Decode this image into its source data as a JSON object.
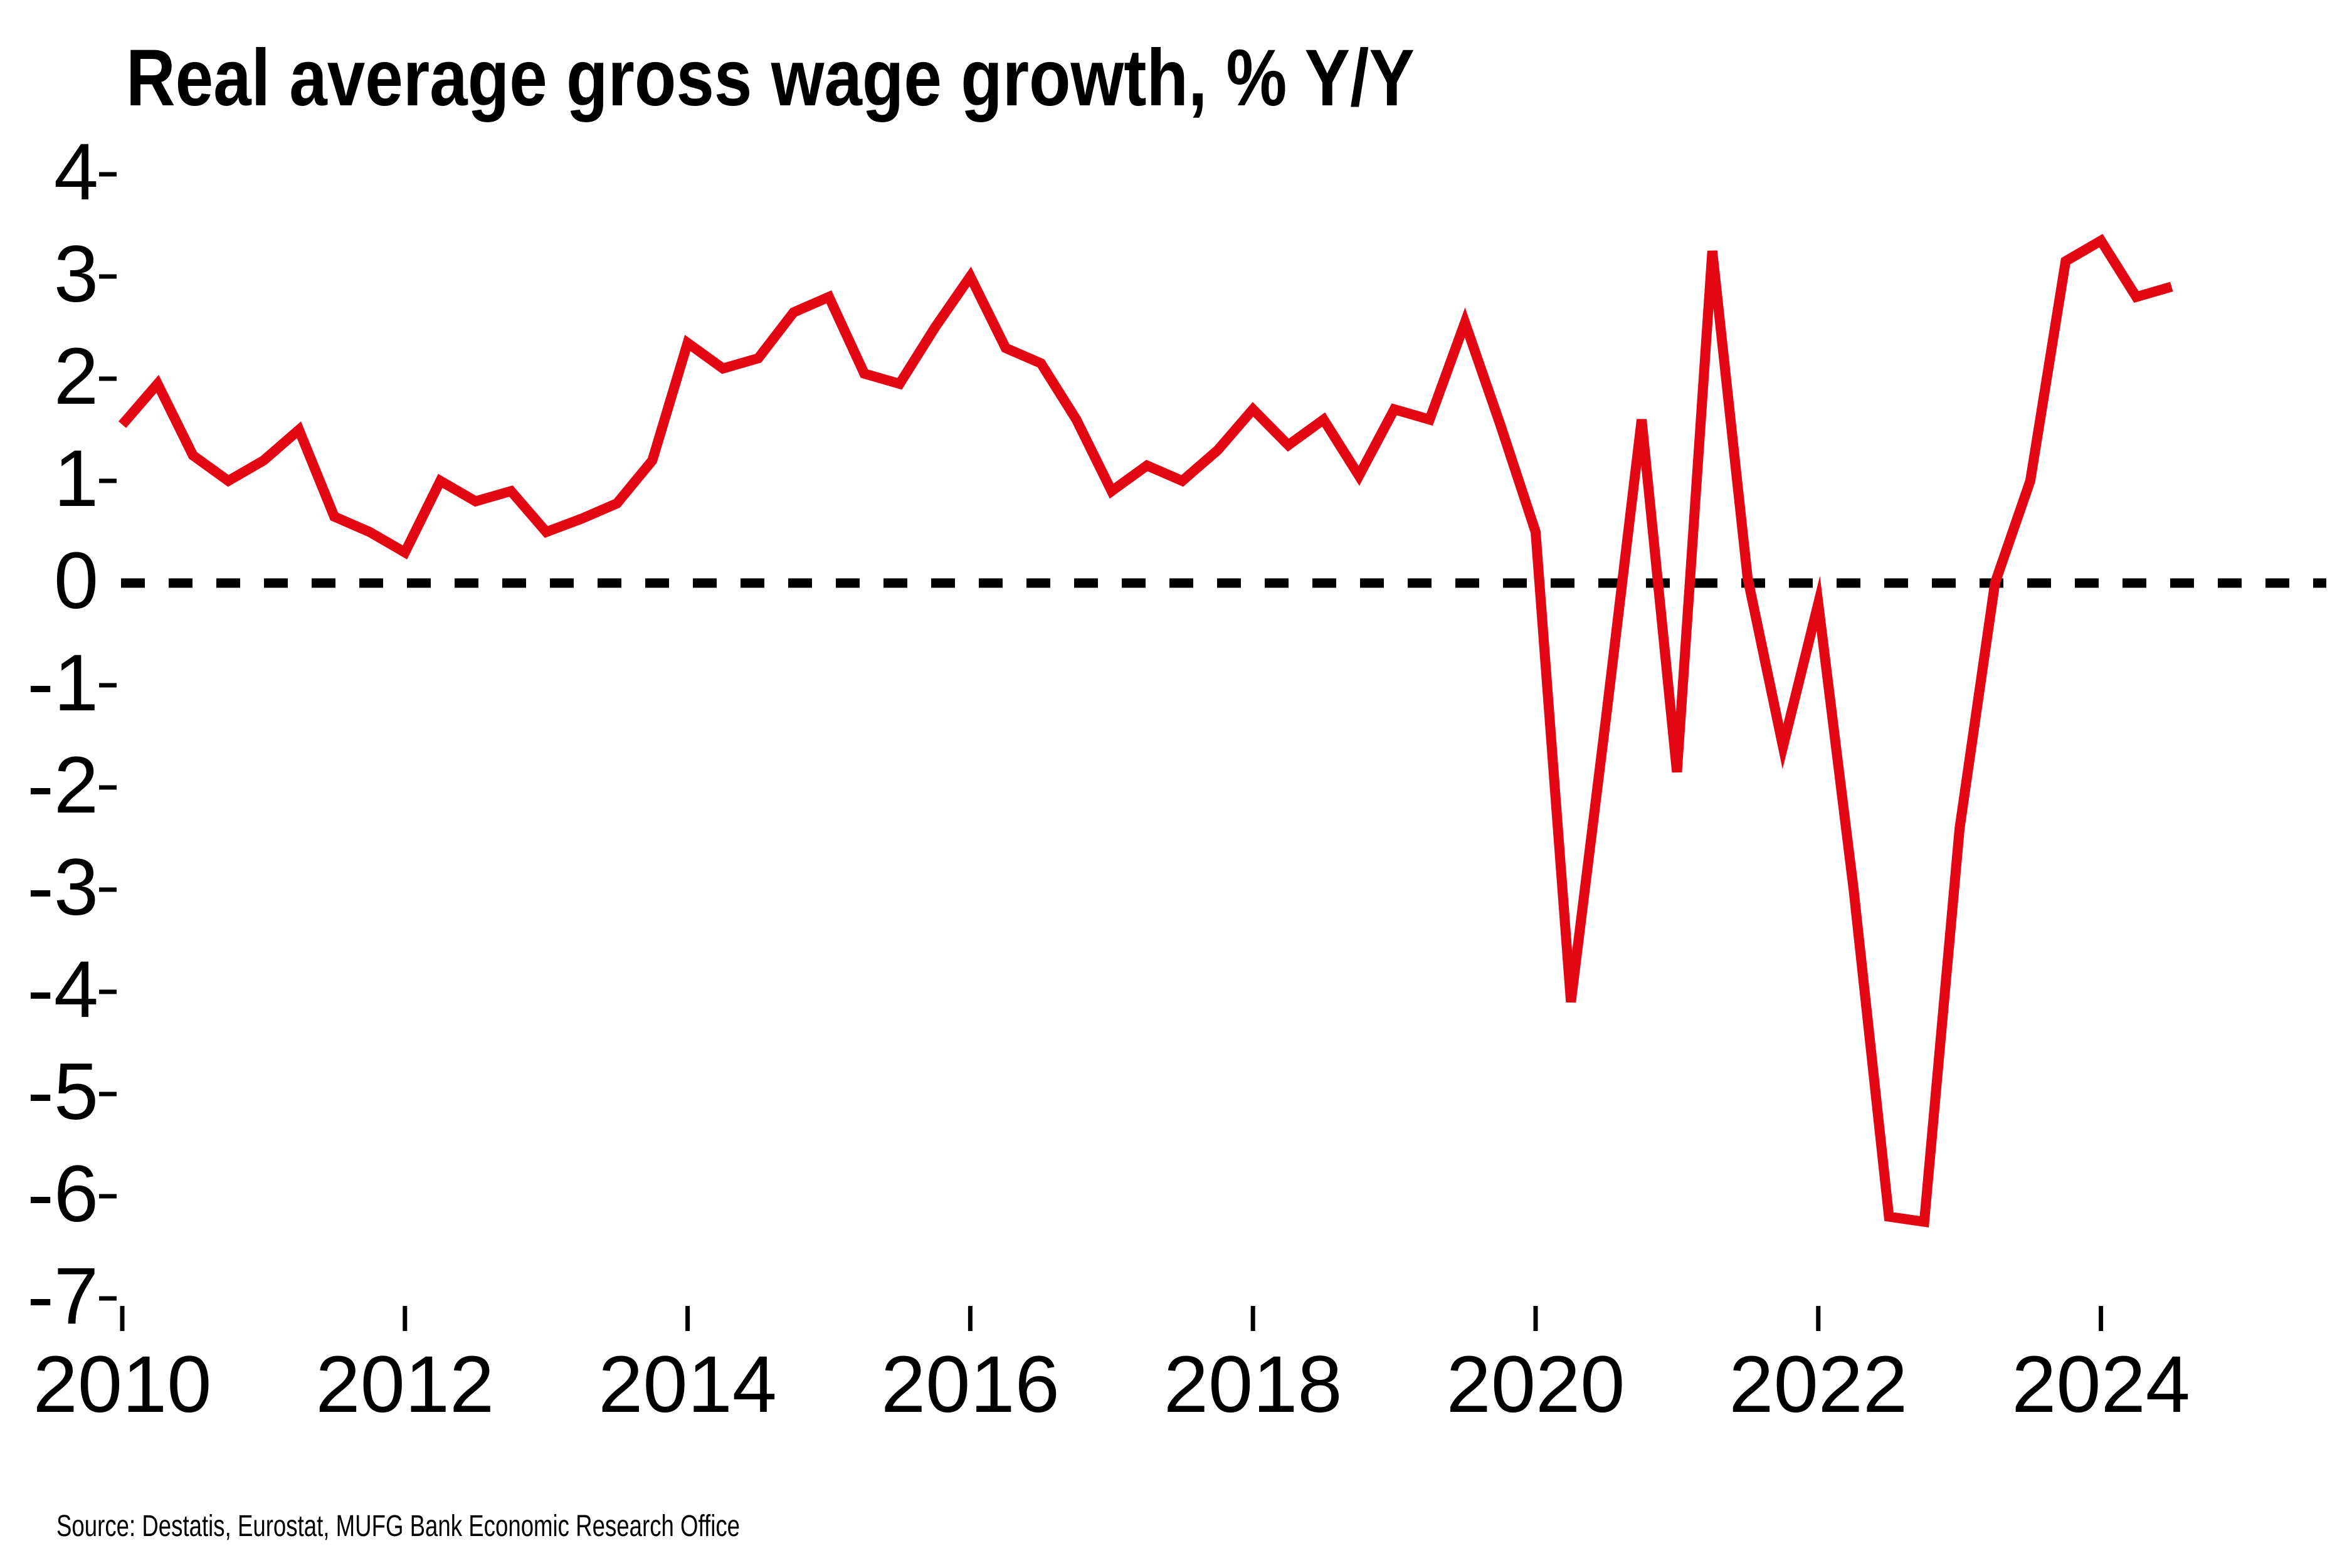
{
  "title": "Real average gross wage growth, % Y/Y",
  "source": "Source: Destatis, Eurostat, MUFG Bank Economic Research Office",
  "chart_data": {
    "type": "line",
    "title": "Real average gross wage growth, % Y/Y",
    "xlabel": "",
    "ylabel": "",
    "ylim": [
      -7,
      4
    ],
    "yticks": [
      4,
      3,
      2,
      1,
      0,
      -1,
      -2,
      -3,
      -4,
      -5,
      -6,
      -7
    ],
    "xtick_years": [
      2010,
      2012,
      2014,
      2016,
      2018,
      2020,
      2022,
      2024
    ],
    "grid": "off",
    "legend": "none",
    "zero_line": "dashed-black",
    "line_color": "#e30613",
    "series": [
      {
        "name": "Real average gross wage growth, % Y/Y",
        "x": [
          "2010Q1",
          "2010Q2",
          "2010Q3",
          "2010Q4",
          "2011Q1",
          "2011Q2",
          "2011Q3",
          "2011Q4",
          "2012Q1",
          "2012Q2",
          "2012Q3",
          "2012Q4",
          "2013Q1",
          "2013Q2",
          "2013Q3",
          "2013Q4",
          "2014Q1",
          "2014Q2",
          "2014Q3",
          "2014Q4",
          "2015Q1",
          "2015Q2",
          "2015Q3",
          "2015Q4",
          "2016Q1",
          "2016Q2",
          "2016Q3",
          "2016Q4",
          "2017Q1",
          "2017Q2",
          "2017Q3",
          "2017Q4",
          "2018Q1",
          "2018Q2",
          "2018Q3",
          "2018Q4",
          "2019Q1",
          "2019Q2",
          "2019Q3",
          "2019Q4",
          "2020Q1",
          "2020Q2",
          "2020Q3",
          "2020Q4",
          "2021Q1",
          "2021Q2",
          "2021Q3",
          "2021Q4",
          "2022Q1",
          "2022Q2",
          "2022Q3",
          "2022Q4",
          "2023Q1",
          "2023Q2",
          "2023Q3",
          "2023Q4",
          "2024Q1",
          "2024Q2",
          "2024Q3"
        ],
        "values": [
          1.55,
          1.95,
          1.25,
          1.0,
          1.2,
          1.5,
          0.65,
          0.5,
          0.3,
          1.0,
          0.8,
          0.9,
          0.5,
          0.63,
          0.78,
          1.2,
          2.35,
          2.1,
          2.2,
          2.65,
          2.8,
          2.05,
          1.95,
          2.5,
          3.0,
          2.3,
          2.15,
          1.6,
          0.9,
          1.15,
          1.0,
          1.3,
          1.7,
          1.35,
          1.6,
          1.05,
          1.7,
          1.6,
          2.55,
          1.55,
          0.5,
          -4.1,
          -1.3,
          1.6,
          -1.85,
          3.25,
          0.05,
          -1.6,
          -0.2,
          -3.0,
          -6.2,
          -6.25,
          -2.4,
          0.0,
          1.0,
          3.15,
          3.35,
          2.8,
          2.9
        ]
      }
    ]
  }
}
